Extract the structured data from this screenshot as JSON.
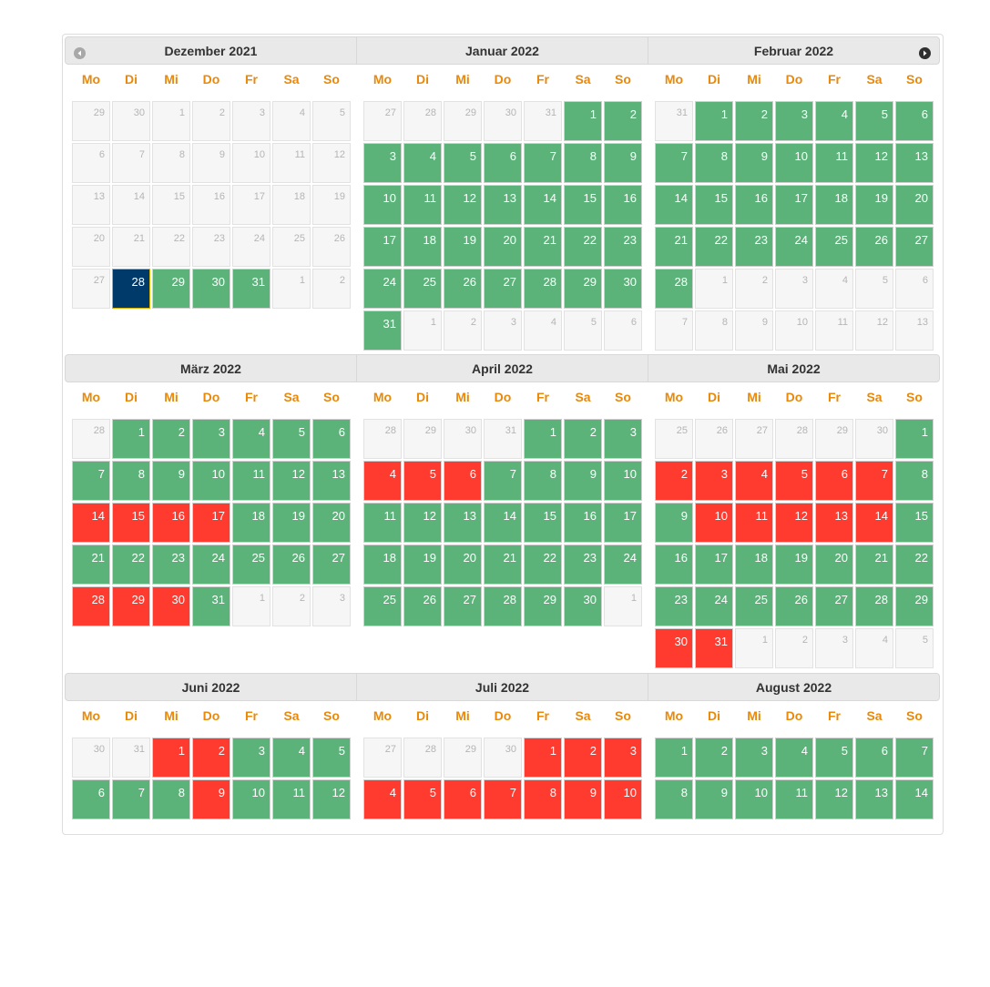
{
  "weekdays": [
    "Mo",
    "Di",
    "Mi",
    "Do",
    "Fr",
    "Sa",
    "So"
  ],
  "colors": {
    "available": "#5cb37a",
    "booked": "#ff3b30",
    "selected": "#003a6b",
    "weekday_label": "#e8890c"
  },
  "icons": {
    "prev": "circle-triangle-left-icon",
    "next": "circle-triangle-right-icon"
  },
  "months": [
    {
      "title": "Dezember 2021",
      "rows": [
        [
          [
            "29",
            "o"
          ],
          [
            "30",
            "o"
          ],
          [
            "1",
            "o"
          ],
          [
            "2",
            "o"
          ],
          [
            "3",
            "o"
          ],
          [
            "4",
            "o"
          ],
          [
            "5",
            "o"
          ]
        ],
        [
          [
            "6",
            "o"
          ],
          [
            "7",
            "o"
          ],
          [
            "8",
            "o"
          ],
          [
            "9",
            "o"
          ],
          [
            "10",
            "o"
          ],
          [
            "11",
            "o"
          ],
          [
            "12",
            "o"
          ]
        ],
        [
          [
            "13",
            "o"
          ],
          [
            "14",
            "o"
          ],
          [
            "15",
            "o"
          ],
          [
            "16",
            "o"
          ],
          [
            "17",
            "o"
          ],
          [
            "18",
            "o"
          ],
          [
            "19",
            "o"
          ]
        ],
        [
          [
            "20",
            "o"
          ],
          [
            "21",
            "o"
          ],
          [
            "22",
            "o"
          ],
          [
            "23",
            "o"
          ],
          [
            "24",
            "o"
          ],
          [
            "25",
            "o"
          ],
          [
            "26",
            "o"
          ]
        ],
        [
          [
            "27",
            "o"
          ],
          [
            "28",
            "s"
          ],
          [
            "29",
            "g"
          ],
          [
            "30",
            "g"
          ],
          [
            "31",
            "g"
          ],
          [
            "1",
            "o"
          ],
          [
            "2",
            "o"
          ]
        ]
      ]
    },
    {
      "title": "Januar 2022",
      "rows": [
        [
          [
            "27",
            "o"
          ],
          [
            "28",
            "o"
          ],
          [
            "29",
            "o"
          ],
          [
            "30",
            "o"
          ],
          [
            "31",
            "o"
          ],
          [
            "1",
            "g"
          ],
          [
            "2",
            "g"
          ]
        ],
        [
          [
            "3",
            "g"
          ],
          [
            "4",
            "g"
          ],
          [
            "5",
            "g"
          ],
          [
            "6",
            "g"
          ],
          [
            "7",
            "g"
          ],
          [
            "8",
            "g"
          ],
          [
            "9",
            "g"
          ]
        ],
        [
          [
            "10",
            "g"
          ],
          [
            "11",
            "g"
          ],
          [
            "12",
            "g"
          ],
          [
            "13",
            "g"
          ],
          [
            "14",
            "g"
          ],
          [
            "15",
            "g"
          ],
          [
            "16",
            "g"
          ]
        ],
        [
          [
            "17",
            "g"
          ],
          [
            "18",
            "g"
          ],
          [
            "19",
            "g"
          ],
          [
            "20",
            "g"
          ],
          [
            "21",
            "g"
          ],
          [
            "22",
            "g"
          ],
          [
            "23",
            "g"
          ]
        ],
        [
          [
            "24",
            "g"
          ],
          [
            "25",
            "g"
          ],
          [
            "26",
            "g"
          ],
          [
            "27",
            "g"
          ],
          [
            "28",
            "g"
          ],
          [
            "29",
            "g"
          ],
          [
            "30",
            "g"
          ]
        ],
        [
          [
            "31",
            "g"
          ],
          [
            "1",
            "o"
          ],
          [
            "2",
            "o"
          ],
          [
            "3",
            "o"
          ],
          [
            "4",
            "o"
          ],
          [
            "5",
            "o"
          ],
          [
            "6",
            "o"
          ]
        ]
      ]
    },
    {
      "title": "Februar 2022",
      "rows": [
        [
          [
            "31",
            "o"
          ],
          [
            "1",
            "g"
          ],
          [
            "2",
            "g"
          ],
          [
            "3",
            "g"
          ],
          [
            "4",
            "g"
          ],
          [
            "5",
            "g"
          ],
          [
            "6",
            "g"
          ]
        ],
        [
          [
            "7",
            "g"
          ],
          [
            "8",
            "g"
          ],
          [
            "9",
            "g"
          ],
          [
            "10",
            "g"
          ],
          [
            "11",
            "g"
          ],
          [
            "12",
            "g"
          ],
          [
            "13",
            "g"
          ]
        ],
        [
          [
            "14",
            "g"
          ],
          [
            "15",
            "g"
          ],
          [
            "16",
            "g"
          ],
          [
            "17",
            "g"
          ],
          [
            "18",
            "g"
          ],
          [
            "19",
            "g"
          ],
          [
            "20",
            "g"
          ]
        ],
        [
          [
            "21",
            "g"
          ],
          [
            "22",
            "g"
          ],
          [
            "23",
            "g"
          ],
          [
            "24",
            "g"
          ],
          [
            "25",
            "g"
          ],
          [
            "26",
            "g"
          ],
          [
            "27",
            "g"
          ]
        ],
        [
          [
            "28",
            "g"
          ],
          [
            "1",
            "o"
          ],
          [
            "2",
            "o"
          ],
          [
            "3",
            "o"
          ],
          [
            "4",
            "o"
          ],
          [
            "5",
            "o"
          ],
          [
            "6",
            "o"
          ]
        ],
        [
          [
            "7",
            "o"
          ],
          [
            "8",
            "o"
          ],
          [
            "9",
            "o"
          ],
          [
            "10",
            "o"
          ],
          [
            "11",
            "o"
          ],
          [
            "12",
            "o"
          ],
          [
            "13",
            "o"
          ]
        ]
      ]
    },
    {
      "title": "März 2022",
      "rows": [
        [
          [
            "28",
            "o"
          ],
          [
            "1",
            "g"
          ],
          [
            "2",
            "g"
          ],
          [
            "3",
            "g"
          ],
          [
            "4",
            "g"
          ],
          [
            "5",
            "g"
          ],
          [
            "6",
            "g"
          ]
        ],
        [
          [
            "7",
            "g"
          ],
          [
            "8",
            "g"
          ],
          [
            "9",
            "g"
          ],
          [
            "10",
            "g"
          ],
          [
            "11",
            "g"
          ],
          [
            "12",
            "g"
          ],
          [
            "13",
            "g"
          ]
        ],
        [
          [
            "14",
            "r"
          ],
          [
            "15",
            "r"
          ],
          [
            "16",
            "r"
          ],
          [
            "17",
            "r"
          ],
          [
            "18",
            "g"
          ],
          [
            "19",
            "g"
          ],
          [
            "20",
            "g"
          ]
        ],
        [
          [
            "21",
            "g"
          ],
          [
            "22",
            "g"
          ],
          [
            "23",
            "g"
          ],
          [
            "24",
            "g"
          ],
          [
            "25",
            "g"
          ],
          [
            "26",
            "g"
          ],
          [
            "27",
            "g"
          ]
        ],
        [
          [
            "28",
            "r"
          ],
          [
            "29",
            "r"
          ],
          [
            "30",
            "r"
          ],
          [
            "31",
            "g"
          ],
          [
            "1",
            "o"
          ],
          [
            "2",
            "o"
          ],
          [
            "3",
            "o"
          ]
        ]
      ]
    },
    {
      "title": "April 2022",
      "rows": [
        [
          [
            "28",
            "o"
          ],
          [
            "29",
            "o"
          ],
          [
            "30",
            "o"
          ],
          [
            "31",
            "o"
          ],
          [
            "1",
            "g"
          ],
          [
            "2",
            "g"
          ],
          [
            "3",
            "g"
          ]
        ],
        [
          [
            "4",
            "r"
          ],
          [
            "5",
            "r"
          ],
          [
            "6",
            "r"
          ],
          [
            "7",
            "g"
          ],
          [
            "8",
            "g"
          ],
          [
            "9",
            "g"
          ],
          [
            "10",
            "g"
          ]
        ],
        [
          [
            "11",
            "g"
          ],
          [
            "12",
            "g"
          ],
          [
            "13",
            "g"
          ],
          [
            "14",
            "g"
          ],
          [
            "15",
            "g"
          ],
          [
            "16",
            "g"
          ],
          [
            "17",
            "g"
          ]
        ],
        [
          [
            "18",
            "g"
          ],
          [
            "19",
            "g"
          ],
          [
            "20",
            "g"
          ],
          [
            "21",
            "g"
          ],
          [
            "22",
            "g"
          ],
          [
            "23",
            "g"
          ],
          [
            "24",
            "g"
          ]
        ],
        [
          [
            "25",
            "g"
          ],
          [
            "26",
            "g"
          ],
          [
            "27",
            "g"
          ],
          [
            "28",
            "g"
          ],
          [
            "29",
            "g"
          ],
          [
            "30",
            "g"
          ],
          [
            "1",
            "o"
          ]
        ]
      ]
    },
    {
      "title": "Mai 2022",
      "rows": [
        [
          [
            "25",
            "o"
          ],
          [
            "26",
            "o"
          ],
          [
            "27",
            "o"
          ],
          [
            "28",
            "o"
          ],
          [
            "29",
            "o"
          ],
          [
            "30",
            "o"
          ],
          [
            "1",
            "g"
          ]
        ],
        [
          [
            "2",
            "r"
          ],
          [
            "3",
            "r"
          ],
          [
            "4",
            "r"
          ],
          [
            "5",
            "r"
          ],
          [
            "6",
            "r"
          ],
          [
            "7",
            "r"
          ],
          [
            "8",
            "g"
          ]
        ],
        [
          [
            "9",
            "g"
          ],
          [
            "10",
            "r"
          ],
          [
            "11",
            "r"
          ],
          [
            "12",
            "r"
          ],
          [
            "13",
            "r"
          ],
          [
            "14",
            "r"
          ],
          [
            "15",
            "g"
          ]
        ],
        [
          [
            "16",
            "g"
          ],
          [
            "17",
            "g"
          ],
          [
            "18",
            "g"
          ],
          [
            "19",
            "g"
          ],
          [
            "20",
            "g"
          ],
          [
            "21",
            "g"
          ],
          [
            "22",
            "g"
          ]
        ],
        [
          [
            "23",
            "g"
          ],
          [
            "24",
            "g"
          ],
          [
            "25",
            "g"
          ],
          [
            "26",
            "g"
          ],
          [
            "27",
            "g"
          ],
          [
            "28",
            "g"
          ],
          [
            "29",
            "g"
          ]
        ],
        [
          [
            "30",
            "r"
          ],
          [
            "31",
            "r"
          ],
          [
            "1",
            "o"
          ],
          [
            "2",
            "o"
          ],
          [
            "3",
            "o"
          ],
          [
            "4",
            "o"
          ],
          [
            "5",
            "o"
          ]
        ]
      ]
    },
    {
      "title": "Juni 2022",
      "rows": [
        [
          [
            "30",
            "o"
          ],
          [
            "31",
            "o"
          ],
          [
            "1",
            "r"
          ],
          [
            "2",
            "r"
          ],
          [
            "3",
            "g"
          ],
          [
            "4",
            "g"
          ],
          [
            "5",
            "g"
          ]
        ],
        [
          [
            "6",
            "g"
          ],
          [
            "7",
            "g"
          ],
          [
            "8",
            "g"
          ],
          [
            "9",
            "r"
          ],
          [
            "10",
            "g"
          ],
          [
            "11",
            "g"
          ],
          [
            "12",
            "g"
          ]
        ]
      ]
    },
    {
      "title": "Juli 2022",
      "rows": [
        [
          [
            "27",
            "o"
          ],
          [
            "28",
            "o"
          ],
          [
            "29",
            "o"
          ],
          [
            "30",
            "o"
          ],
          [
            "1",
            "r"
          ],
          [
            "2",
            "r"
          ],
          [
            "3",
            "r"
          ]
        ],
        [
          [
            "4",
            "r"
          ],
          [
            "5",
            "r"
          ],
          [
            "6",
            "r"
          ],
          [
            "7",
            "r"
          ],
          [
            "8",
            "r"
          ],
          [
            "9",
            "r"
          ],
          [
            "10",
            "r"
          ]
        ]
      ]
    },
    {
      "title": "August 2022",
      "rows": [
        [
          [
            "1",
            "g"
          ],
          [
            "2",
            "g"
          ],
          [
            "3",
            "g"
          ],
          [
            "4",
            "g"
          ],
          [
            "5",
            "g"
          ],
          [
            "6",
            "g"
          ],
          [
            "7",
            "g"
          ]
        ],
        [
          [
            "8",
            "g"
          ],
          [
            "9",
            "g"
          ],
          [
            "10",
            "g"
          ],
          [
            "11",
            "g"
          ],
          [
            "12",
            "g"
          ],
          [
            "13",
            "g"
          ],
          [
            "14",
            "g"
          ]
        ]
      ]
    }
  ]
}
